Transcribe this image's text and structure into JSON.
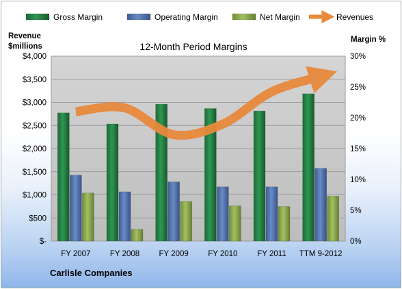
{
  "chart_data": {
    "type": "bar",
    "title": "12-Month Period Margins",
    "subtitle": "Carlisle Companies",
    "ylabel_left": [
      "Revenue",
      "$millions"
    ],
    "ylabel_right": "Margin %",
    "ylim_left": [
      0,
      4000
    ],
    "ylim_right": [
      0,
      30
    ],
    "yticks_left": [
      "$4,000",
      "$3,500",
      "$3,000",
      "$2,500",
      "$2,000",
      "$1,500",
      "$1,000",
      "$500",
      "$-"
    ],
    "yticks_right": [
      "30%",
      "25%",
      "20%",
      "15%",
      "10%",
      "5%",
      "0%"
    ],
    "grid": true,
    "legend_position": "top",
    "categories": [
      "FY 2007",
      "FY 2008",
      "FY 2009",
      "FY 2010",
      "FY 2011",
      "TTM 9-2012"
    ],
    "series": [
      {
        "name": "Gross Margin",
        "type": "bar",
        "axis": "right",
        "color": "#217a40",
        "values": [
          20.8,
          19.0,
          22.2,
          21.5,
          21.1,
          23.9
        ]
      },
      {
        "name": "Operating Margin",
        "type": "bar",
        "axis": "right",
        "color": "#4f6fa8",
        "values": [
          10.7,
          8.0,
          9.6,
          8.8,
          8.8,
          11.8
        ]
      },
      {
        "name": "Net Margin",
        "type": "bar",
        "axis": "right",
        "color": "#8aa54d",
        "values": [
          7.8,
          1.9,
          6.4,
          5.7,
          5.6,
          7.3
        ]
      },
      {
        "name": "Revenues",
        "type": "line",
        "axis": "left",
        "color": "#e8893c",
        "values": [
          2800,
          2880,
          2300,
          2530,
          3230,
          3560
        ]
      }
    ]
  }
}
